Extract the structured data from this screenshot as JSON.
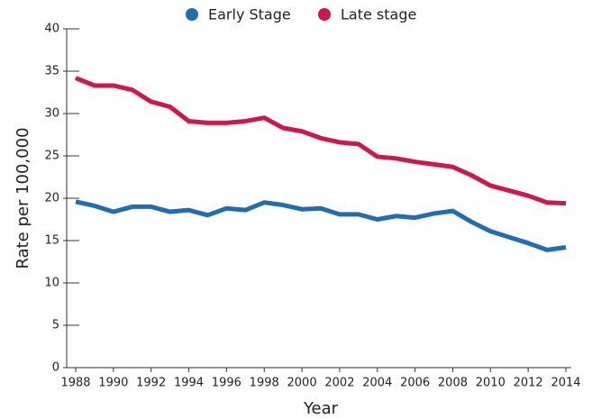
{
  "chart_data": {
    "type": "line",
    "x": [
      1988,
      1989,
      1990,
      1991,
      1992,
      1993,
      1994,
      1995,
      1996,
      1997,
      1998,
      1999,
      2000,
      2001,
      2002,
      2003,
      2004,
      2005,
      2006,
      2007,
      2008,
      2009,
      2010,
      2011,
      2012,
      2013,
      2014
    ],
    "series": [
      {
        "name": "Early Stage",
        "color": "#1f6db3",
        "values": [
          19.6,
          19.1,
          18.4,
          19.0,
          19.0,
          18.4,
          18.6,
          18.0,
          18.8,
          18.6,
          19.5,
          19.2,
          18.7,
          18.8,
          18.1,
          18.1,
          17.5,
          17.9,
          17.7,
          18.2,
          18.5,
          17.2,
          16.1,
          15.4,
          14.7,
          13.9,
          14.2
        ]
      },
      {
        "name": "Late stage",
        "color": "#d1164b",
        "values": [
          34.2,
          33.3,
          33.3,
          32.8,
          31.4,
          30.8,
          29.1,
          28.9,
          28.9,
          29.1,
          29.5,
          28.3,
          27.9,
          27.1,
          26.6,
          26.4,
          24.9,
          24.7,
          24.3,
          24.0,
          23.7,
          22.7,
          21.5,
          20.9,
          20.3,
          19.5,
          19.4
        ]
      }
    ],
    "xlabel": "Year",
    "ylabel": "Rate per 100,000",
    "xlim": [
      1988,
      2014
    ],
    "xticks": [
      1988,
      1990,
      1992,
      1994,
      1996,
      1998,
      2000,
      2002,
      2004,
      2006,
      2008,
      2010,
      2012,
      2014
    ],
    "ylim": [
      0,
      40
    ],
    "yticks": [
      0,
      5,
      10,
      15,
      20,
      25,
      30,
      35,
      40
    ],
    "legend": "top"
  }
}
